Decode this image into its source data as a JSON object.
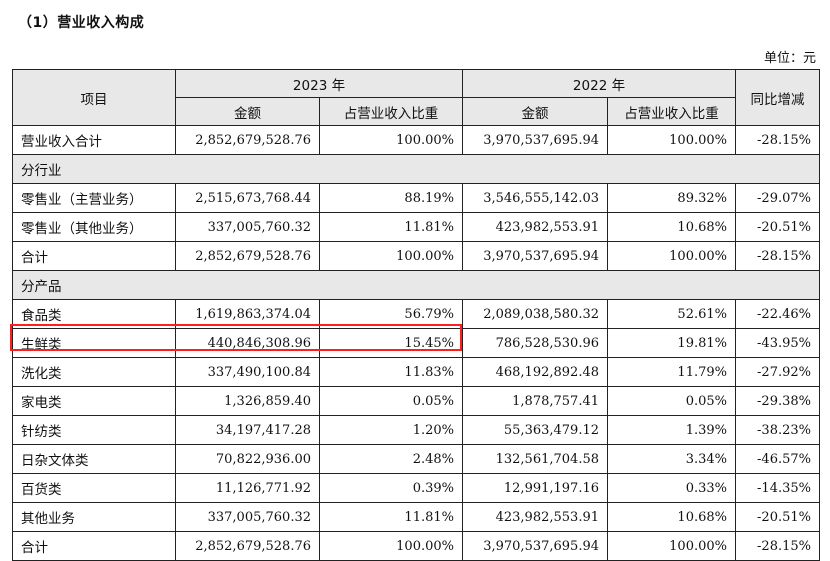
{
  "heading": "（1）营业收入构成",
  "unit": "单位：元",
  "header": {
    "item": "项目",
    "year1": "2023 年",
    "year2": "2022 年",
    "yoy": "同比增减",
    "amount1": "金额",
    "ratio1": "占营业收入比重",
    "amount2": "金额",
    "ratio2": "占营业收入比重"
  },
  "rows": [
    {
      "label": "营业收入合计",
      "a1": "2,852,679,528.76",
      "r1": "100.00%",
      "a2": "3,970,537,695.94",
      "r2": "100.00%",
      "yoy": "-28.15%"
    },
    {
      "section": "分行业"
    },
    {
      "label": "零售业（主营业务）",
      "a1": "2,515,673,768.44",
      "r1": "88.19%",
      "a2": "3,546,555,142.03",
      "r2": "89.32%",
      "yoy": "-29.07%"
    },
    {
      "label": "零售业（其他业务）",
      "a1": "337,005,760.32",
      "r1": "11.81%",
      "a2": "423,982,553.91",
      "r2": "10.68%",
      "yoy": "-20.51%"
    },
    {
      "label": "合计",
      "a1": "2,852,679,528.76",
      "r1": "100.00%",
      "a2": "3,970,537,695.94",
      "r2": "100.00%",
      "yoy": "-28.15%"
    },
    {
      "section": "分产品"
    },
    {
      "label": "食品类",
      "a1": "1,619,863,374.04",
      "r1": "56.79%",
      "a2": "2,089,038,580.32",
      "r2": "52.61%",
      "yoy": "-22.46%"
    },
    {
      "label": "生鲜类",
      "a1": "440,846,308.96",
      "r1": "15.45%",
      "a2": "786,528,530.96",
      "r2": "19.81%",
      "yoy": "-43.95%",
      "highlighted": true
    },
    {
      "label": "洗化类",
      "a1": "337,490,100.84",
      "r1": "11.83%",
      "a2": "468,192,892.48",
      "r2": "11.79%",
      "yoy": "-27.92%"
    },
    {
      "label": "家电类",
      "a1": "1,326,859.40",
      "r1": "0.05%",
      "a2": "1,878,757.41",
      "r2": "0.05%",
      "yoy": "-29.38%"
    },
    {
      "label": "针纺类",
      "a1": "34,197,417.28",
      "r1": "1.20%",
      "a2": "55,363,479.12",
      "r2": "1.39%",
      "yoy": "-38.23%"
    },
    {
      "label": "日杂文体类",
      "a1": "70,822,936.00",
      "r1": "2.48%",
      "a2": "132,561,704.58",
      "r2": "3.34%",
      "yoy": "-46.57%"
    },
    {
      "label": "百货类",
      "a1": "11,126,771.92",
      "r1": "0.39%",
      "a2": "12,991,197.16",
      "r2": "0.33%",
      "yoy": "-14.35%"
    },
    {
      "label": "其他业务",
      "a1": "337,005,760.32",
      "r1": "11.81%",
      "a2": "423,982,553.91",
      "r2": "10.68%",
      "yoy": "-20.51%"
    },
    {
      "label": "合计",
      "a1": "2,852,679,528.76",
      "r1": "100.00%",
      "a2": "3,970,537,695.94",
      "r2": "100.00%",
      "yoy": "-28.15%"
    }
  ],
  "colors": {
    "header_bg": "#e8e8e8",
    "highlight": "#ff1e1e",
    "border": "#222222"
  }
}
